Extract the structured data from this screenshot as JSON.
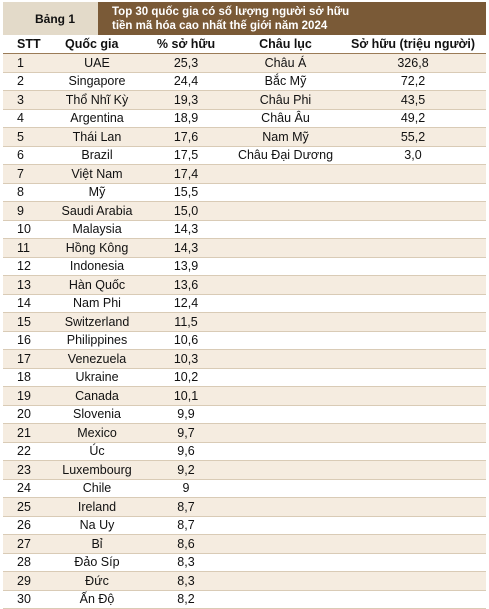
{
  "table_tag": "Bảng 1",
  "title_line1": "Top 30 quốc gia có số lượng người sở hữu",
  "title_line2": "tiền mã hóa cao nhất thế giới năm 2024",
  "headers": [
    "STT",
    "Quốc gia",
    "% sở hữu",
    "Châu lục",
    "Sở hữu (triệu người)"
  ],
  "rows": [
    [
      "1",
      "UAE",
      "25,3",
      "Châu Á",
      "326,8"
    ],
    [
      "2",
      "Singapore",
      "24,4",
      "Bắc Mỹ",
      "72,2"
    ],
    [
      "3",
      "Thổ Nhĩ Kỳ",
      "19,3",
      "Châu Phi",
      "43,5"
    ],
    [
      "4",
      "Argentina",
      "18,9",
      "Châu Âu",
      "49,2"
    ],
    [
      "5",
      "Thái Lan",
      "17,6",
      "Nam Mỹ",
      "55,2"
    ],
    [
      "6",
      "Brazil",
      "17,5",
      "Châu Đại Dương",
      "3,0"
    ],
    [
      "7",
      "Việt Nam",
      "17,4",
      "",
      ""
    ],
    [
      "8",
      "Mỹ",
      "15,5",
      "",
      ""
    ],
    [
      "9",
      "Saudi Arabia",
      "15,0",
      "",
      ""
    ],
    [
      "10",
      "Malaysia",
      "14,3",
      "",
      ""
    ],
    [
      "11",
      "Hồng Kông",
      "14,3",
      "",
      ""
    ],
    [
      "12",
      "Indonesia",
      "13,9",
      "",
      ""
    ],
    [
      "13",
      "Hàn Quốc",
      "13,6",
      "",
      ""
    ],
    [
      "14",
      "Nam Phi",
      "12,4",
      "",
      ""
    ],
    [
      "15",
      "Switzerland",
      "11,5",
      "",
      ""
    ],
    [
      "16",
      "Philippines",
      "10,6",
      "",
      ""
    ],
    [
      "17",
      "Venezuela",
      "10,3",
      "",
      ""
    ],
    [
      "18",
      "Ukraine",
      "10,2",
      "",
      ""
    ],
    [
      "19",
      "Canada",
      "10,1",
      "",
      ""
    ],
    [
      "20",
      "Slovenia",
      "9,9",
      "",
      ""
    ],
    [
      "21",
      "Mexico",
      "9,7",
      "",
      ""
    ],
    [
      "22",
      "Úc",
      "9,6",
      "",
      ""
    ],
    [
      "23",
      "Luxembourg",
      "9,2",
      "",
      ""
    ],
    [
      "24",
      "Chile",
      "9",
      "",
      ""
    ],
    [
      "25",
      "Ireland",
      "8,7",
      "",
      ""
    ],
    [
      "26",
      "Na Uy",
      "8,7",
      "",
      ""
    ],
    [
      "27",
      "Bỉ",
      "8,6",
      "",
      ""
    ],
    [
      "28",
      "Đảo Síp",
      "8,3",
      "",
      ""
    ],
    [
      "29",
      "Đức",
      "8,3",
      "",
      ""
    ],
    [
      "30",
      "Ấn Độ",
      "8,2",
      "",
      ""
    ]
  ]
}
